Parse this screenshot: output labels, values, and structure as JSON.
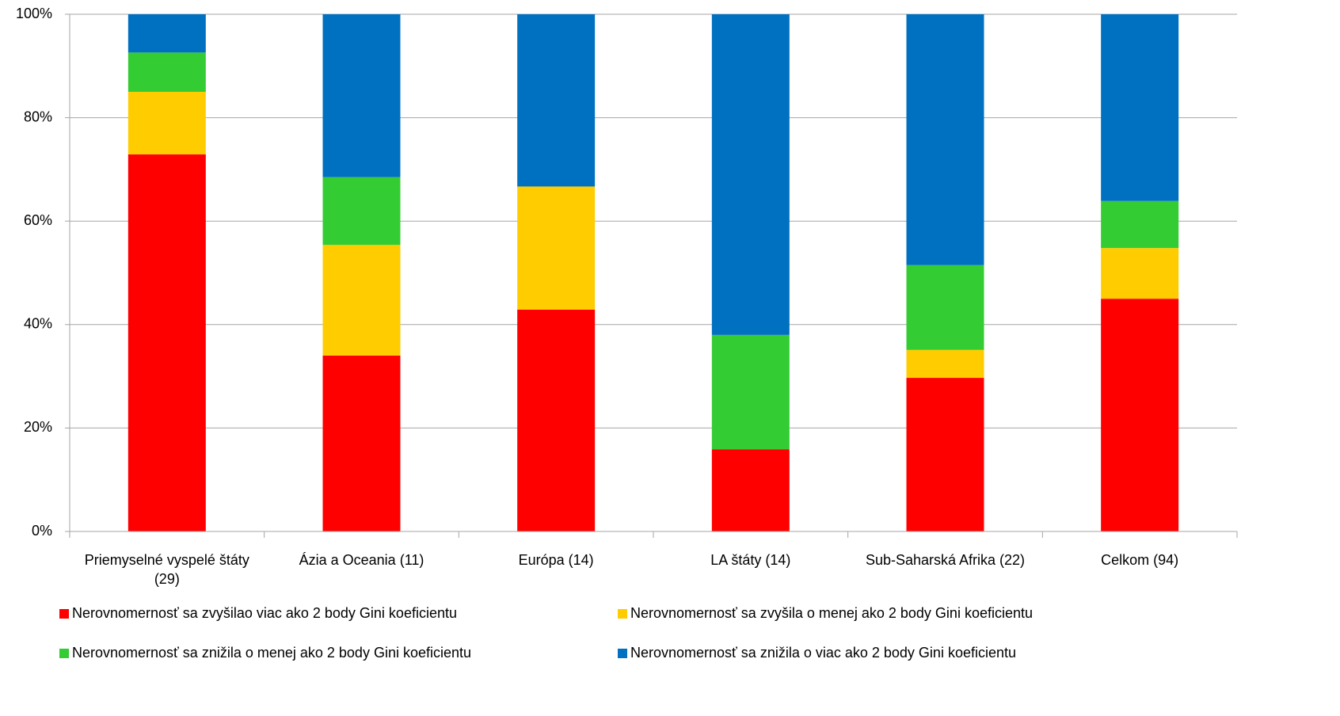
{
  "chart_data": {
    "type": "stacked_bar_100",
    "categories": [
      "Priemyselné vyspelé štáty (29)",
      "Ázia a Oceania (11)",
      "Európa (14)",
      "LA štáty (14)",
      "Sub-Saharská Afrika (22)",
      "Celkom (94)"
    ],
    "series": [
      {
        "name": "Nerovnomernosť sa zvyšilao viac ako 2 body Gini koeficientu",
        "color": "#ff0000",
        "values": [
          72.9,
          34.0,
          42.9,
          15.9,
          29.7,
          45.0
        ]
      },
      {
        "name": "Nerovnomernosť sa zvyšila o menej ako 2 body Gini koeficientu",
        "color": "#ffcc00",
        "values": [
          12.1,
          21.4,
          23.8,
          0,
          5.4,
          9.8
        ]
      },
      {
        "name": "Nerovnomernosť sa znižila o menej ako 2 body Gini koeficientu",
        "color": "#33cc33",
        "values": [
          7.6,
          13.1,
          0,
          22.1,
          16.4,
          9.1
        ]
      },
      {
        "name": "Nerovnomernosť sa znižila o viac ako 2 body Gini koeficientu",
        "color": "#0070c0",
        "values": [
          7.4,
          31.5,
          33.3,
          62.0,
          48.5,
          36.1
        ]
      }
    ],
    "ylim": [
      0,
      100
    ],
    "yticks": [
      {
        "value": 0,
        "label": "0%"
      },
      {
        "value": 20,
        "label": "20%"
      },
      {
        "value": 40,
        "label": "40%"
      },
      {
        "value": 60,
        "label": "60%"
      },
      {
        "value": 80,
        "label": "80%"
      },
      {
        "value": 100,
        "label": "100%"
      }
    ],
    "grid": true,
    "legend": "bottom"
  }
}
